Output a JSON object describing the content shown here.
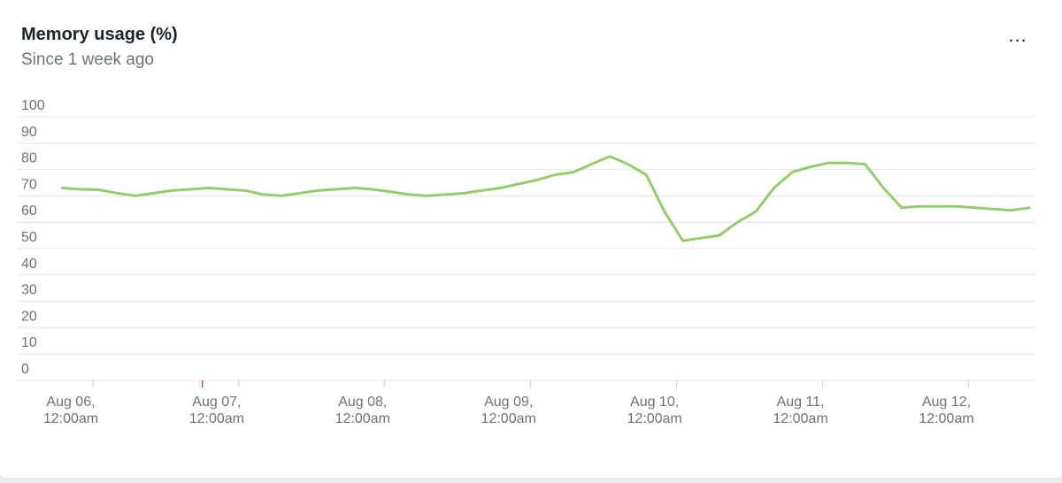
{
  "header": {
    "title": "Memory usage (%)",
    "subtitle": "Since 1 week ago",
    "more_label": "..."
  },
  "colors": {
    "series": "#94cc6e",
    "grid": "#e3e4e4",
    "axis_text": "#6b7377",
    "marker": "#e0454f"
  },
  "chart_data": {
    "type": "line",
    "title": "Memory usage (%)",
    "subtitle": "Since 1 week ago",
    "xlabel": "",
    "ylabel": "",
    "ylim": [
      0,
      100
    ],
    "yticks": [
      0,
      10,
      20,
      30,
      40,
      50,
      60,
      70,
      80,
      90,
      100
    ],
    "grid": true,
    "xlim": [
      "2023-08-05T16:00",
      "2023-08-12T11:00"
    ],
    "xticks": [
      {
        "line1": "Aug 06,",
        "line2": "12:00am",
        "value": "2023-08-06T00:00"
      },
      {
        "line1": "Aug 07,",
        "line2": "12:00am",
        "value": "2023-08-07T00:00"
      },
      {
        "line1": "Aug 08,",
        "line2": "12:00am",
        "value": "2023-08-08T00:00"
      },
      {
        "line1": "Aug 09,",
        "line2": "12:00am",
        "value": "2023-08-09T00:00"
      },
      {
        "line1": "Aug 10,",
        "line2": "12:00am",
        "value": "2023-08-10T00:00"
      },
      {
        "line1": "Aug 11,",
        "line2": "12:00am",
        "value": "2023-08-11T00:00"
      },
      {
        "line1": "Aug 12,",
        "line2": "12:00am",
        "value": "2023-08-12T00:00"
      }
    ],
    "marker": {
      "value": "2023-08-06T18:00"
    },
    "series": [
      {
        "x": [
          "2023-08-05T19:00",
          "2023-08-05T22:00",
          "2023-08-06T01:00",
          "2023-08-06T04:00",
          "2023-08-06T07:00",
          "2023-08-06T10:00",
          "2023-08-06T13:00",
          "2023-08-06T16:00",
          "2023-08-06T19:00",
          "2023-08-06T22:00",
          "2023-08-07T01:00",
          "2023-08-07T04:00",
          "2023-08-07T07:00",
          "2023-08-07T10:00",
          "2023-08-07T13:00",
          "2023-08-07T16:00",
          "2023-08-07T19:00",
          "2023-08-07T22:00",
          "2023-08-08T01:00",
          "2023-08-08T04:00",
          "2023-08-08T07:00",
          "2023-08-08T10:00",
          "2023-08-08T13:00",
          "2023-08-08T16:00",
          "2023-08-08T19:00",
          "2023-08-08T22:00",
          "2023-08-09T01:00",
          "2023-08-09T04:00",
          "2023-08-09T07:00",
          "2023-08-09T10:00",
          "2023-08-09T13:00",
          "2023-08-09T16:00",
          "2023-08-09T19:00",
          "2023-08-09T22:00",
          "2023-08-10T01:00",
          "2023-08-10T04:00",
          "2023-08-10T07:00",
          "2023-08-10T10:00",
          "2023-08-10T13:00",
          "2023-08-10T16:00",
          "2023-08-10T19:00",
          "2023-08-10T22:00",
          "2023-08-11T01:00",
          "2023-08-11T04:00",
          "2023-08-11T07:00",
          "2023-08-11T10:00",
          "2023-08-11T13:00",
          "2023-08-11T16:00",
          "2023-08-11T19:00",
          "2023-08-11T22:00",
          "2023-08-12T01:00",
          "2023-08-12T04:00",
          "2023-08-12T07:00",
          "2023-08-12T10:00"
        ],
        "y": [
          73,
          72.5,
          72.3,
          71,
          70,
          71,
          72,
          72.5,
          73,
          72.5,
          72,
          70.5,
          70,
          71,
          72,
          72.5,
          73,
          72.5,
          71.5,
          70.5,
          70,
          70.5,
          71,
          72,
          73,
          74.5,
          76,
          78,
          79,
          82,
          85,
          82,
          78,
          64,
          53,
          54,
          55,
          60,
          64,
          73,
          79,
          81,
          82.5,
          82.5,
          82,
          73,
          65.5,
          66,
          66,
          66,
          65.5,
          65,
          64.5,
          65.5
        ]
      }
    ]
  }
}
